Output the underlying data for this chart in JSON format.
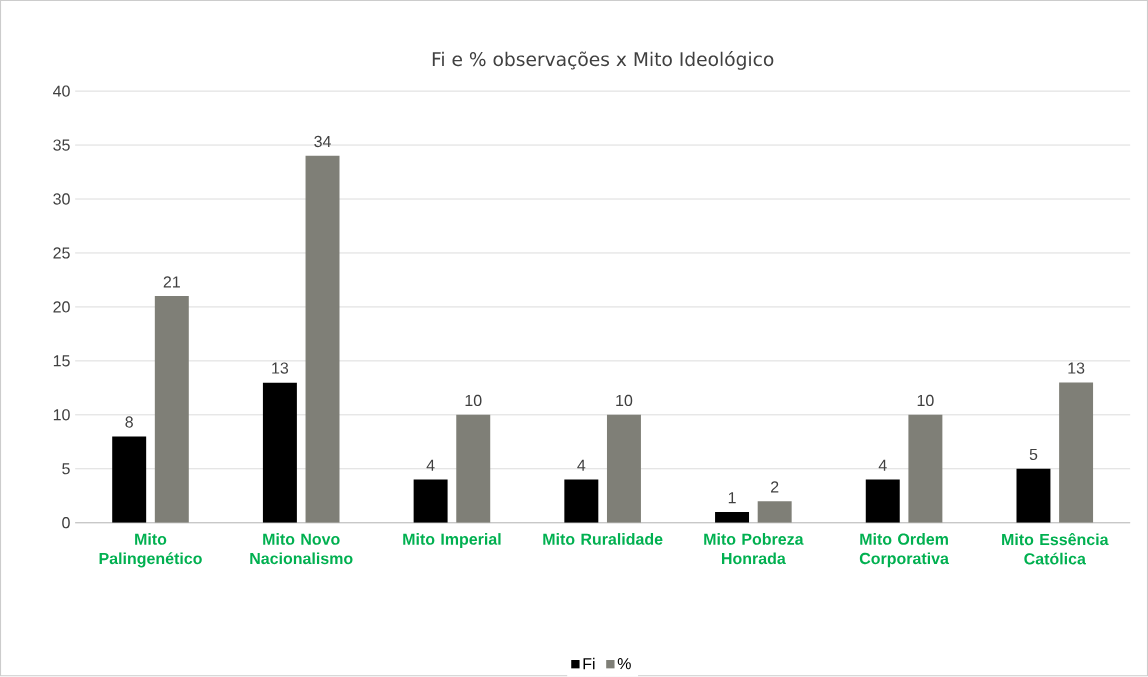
{
  "chart_data": {
    "type": "bar",
    "title": "Fi e % observações x Mito Ideológico",
    "categories": [
      "Mito Palingenético",
      "Mito Novo Nacionalismo",
      "Mito Imperial",
      "Mito Ruralidade",
      "Mito Pobreza Honrada",
      "Mito Ordem Corporativa",
      "Mito Essência Católica"
    ],
    "series": [
      {
        "name": "Fi",
        "color": "#000000",
        "values": [
          8,
          13,
          4,
          4,
          1,
          4,
          5
        ]
      },
      {
        "name": "%",
        "color": "#7f7f77",
        "values": [
          21,
          34,
          10,
          10,
          2,
          10,
          13
        ]
      }
    ],
    "ylim": [
      0,
      40
    ],
    "yticks": [
      0,
      5,
      10,
      15,
      20,
      25,
      30,
      35,
      40
    ],
    "grid": "y",
    "legend": "bottom",
    "data_labels": true
  }
}
